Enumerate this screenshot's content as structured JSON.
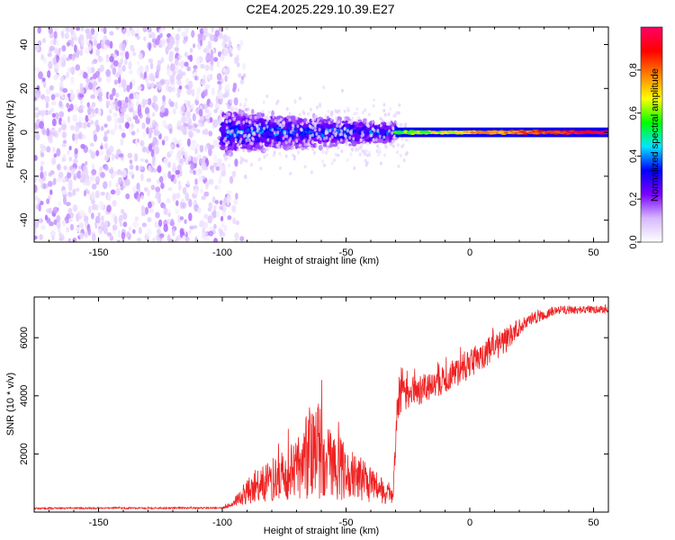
{
  "figure": {
    "title": "C2E4.2025.229.10.39.E27"
  },
  "chart_data": [
    {
      "type": "heatmap",
      "xlabel": "Height of straight line (km)",
      "ylabel": "Frequency (Hz)",
      "xlim": [
        -176,
        56
      ],
      "ylim": [
        -50,
        48
      ],
      "xticks": [
        -150,
        -100,
        -50,
        0,
        50
      ],
      "yticks": [
        -40,
        -20,
        0,
        20,
        40
      ],
      "colorbar": {
        "label": "Normalized spectral amplitude",
        "range": [
          0.0,
          1.0
        ],
        "ticks": [
          0.0,
          0.2,
          0.4,
          0.6,
          0.8
        ],
        "colors": [
          "#ffffff",
          "#d6b8ff",
          "#7a00ff",
          "#0000ff",
          "#00e5ff",
          "#00ff00",
          "#ffff00",
          "#ff8000",
          "#ff0000",
          "#ff0066"
        ]
      },
      "regions": [
        {
          "x_range": [
            -176,
            -90
          ],
          "freq_spread_hz": [
            -50,
            48
          ],
          "amplitude": [
            0.0,
            0.12
          ],
          "description_value": "noise"
        },
        {
          "x_range": [
            -100,
            -30
          ],
          "freq_spread_hz": [
            -12,
            12
          ],
          "amplitude": [
            0.1,
            0.45
          ]
        },
        {
          "x_range": [
            -30,
            56
          ],
          "freq_spread_hz": [
            -2,
            2
          ],
          "amplitude": [
            0.5,
            1.0
          ]
        }
      ],
      "grid": false
    },
    {
      "type": "line",
      "xlabel": "Height of straight line (km)",
      "ylabel": "SNR (10 * v/v)",
      "xlim": [
        -176,
        56
      ],
      "ylim": [
        0,
        7400
      ],
      "xticks": [
        -150,
        -100,
        -50,
        0,
        50
      ],
      "yticks": [
        2000,
        4000,
        6000
      ],
      "color": "#ee2222",
      "envelope": [
        {
          "x": -176,
          "base": 100,
          "amp": 60
        },
        {
          "x": -100,
          "base": 110,
          "amp": 60
        },
        {
          "x": -95,
          "base": 200,
          "amp": 300
        },
        {
          "x": -88,
          "base": 300,
          "amp": 1100
        },
        {
          "x": -80,
          "base": 350,
          "amp": 1500
        },
        {
          "x": -70,
          "base": 400,
          "amp": 2200
        },
        {
          "x": -62,
          "base": 450,
          "amp": 3600
        },
        {
          "x": -55,
          "base": 400,
          "amp": 2400
        },
        {
          "x": -45,
          "base": 400,
          "amp": 1600
        },
        {
          "x": -35,
          "base": 250,
          "amp": 900
        },
        {
          "x": -31,
          "base": 300,
          "amp": 500
        },
        {
          "x": -29,
          "base": 3200,
          "amp": 2200
        },
        {
          "x": -25,
          "base": 3500,
          "amp": 1200
        },
        {
          "x": -15,
          "base": 3900,
          "amp": 900
        },
        {
          "x": -5,
          "base": 4300,
          "amp": 1100
        },
        {
          "x": 5,
          "base": 4900,
          "amp": 1000
        },
        {
          "x": 15,
          "base": 5500,
          "amp": 900
        },
        {
          "x": 22,
          "base": 6300,
          "amp": 500
        },
        {
          "x": 35,
          "base": 6800,
          "amp": 300
        },
        {
          "x": 56,
          "base": 6850,
          "amp": 250
        }
      ],
      "grid": false
    }
  ]
}
